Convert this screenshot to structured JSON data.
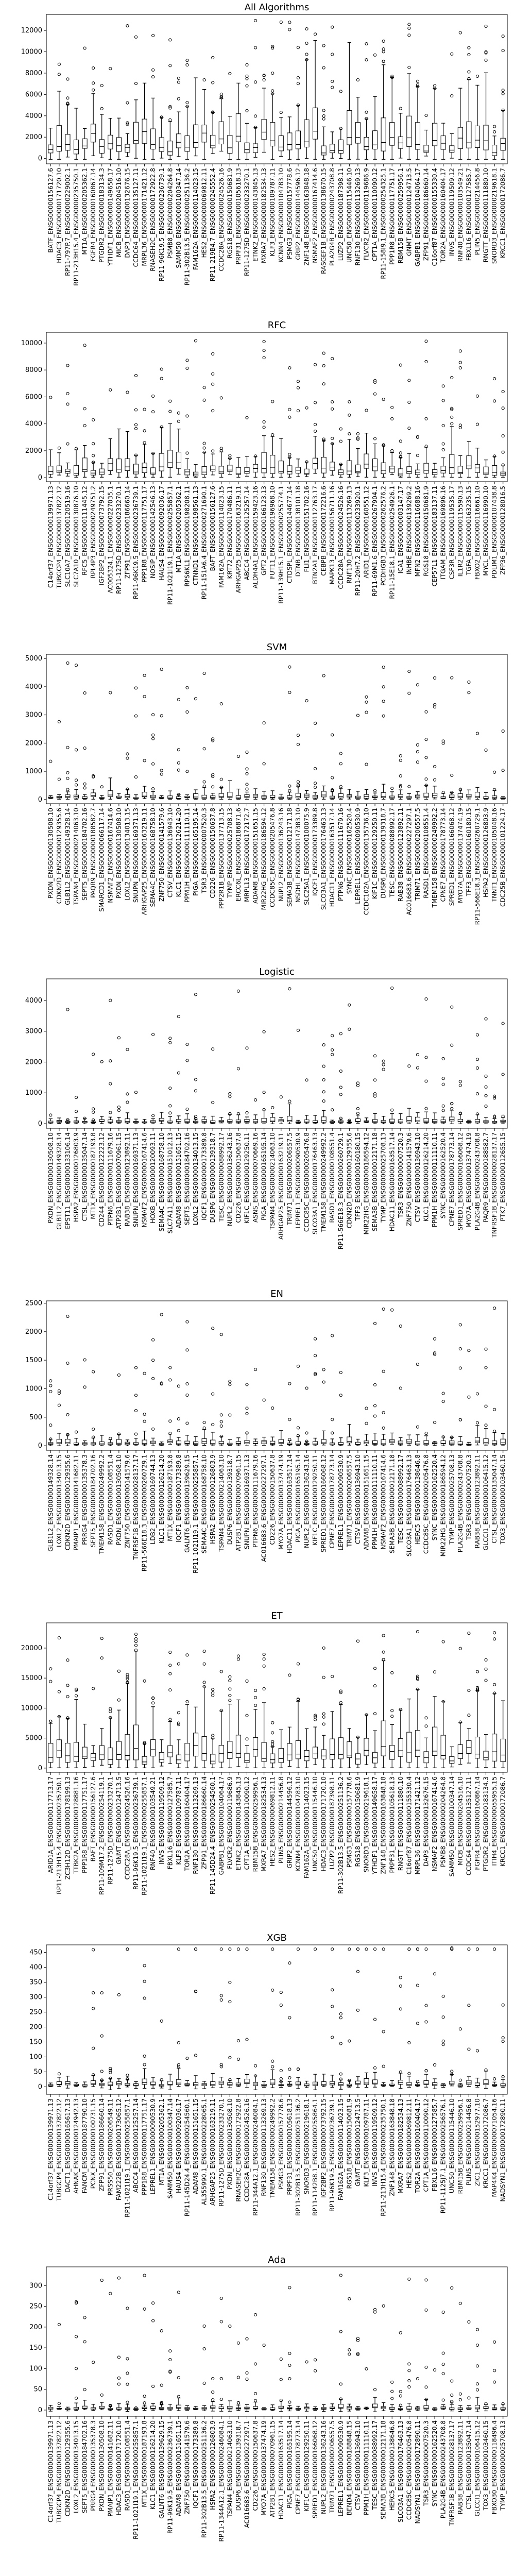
{
  "figure": {
    "chart_type": "box",
    "colors": {
      "box_edge": "#000000",
      "box_fill": "#ffffff",
      "whisker": "#000000",
      "median": "#000000",
      "outlier": "#000000"
    }
  },
  "chart_data": [
    {
      "type": "box",
      "title": "All Algorithms",
      "ylim": [
        -500,
        13500
      ],
      "yticks": [
        0,
        2000,
        4000,
        6000,
        8000,
        10000,
        12000
      ],
      "categories": [
        "BATF_ENSG00000156127.6",
        "HDAC3_ENSG00000171720.10",
        "RP11-797P.7_ENSG00000229002.1",
        "RP11-213H15.4_ENSG00000235750.1",
        "MT1A_ENSG00000205362.1",
        "FGFR4_ENSG00000160867.14",
        "PTGDR2_ENSG00000183134.3",
        "YTHDF1_ENSG00000149658.17",
        "MICB_ENSG00000204516.10",
        "DAP3_ENSG00000132676.15",
        "CCDC64_ENSG00000135127.11",
        "MRPL36_ENSG00000171421.12",
        "RNASEH2C_ENSG00000172922.8",
        "RP11-96K19.5_ENSG00000236739.1",
        "PSMB8_ENSG00000204264.8",
        "SAMM50_ENSG00000100347.14",
        "RP11-302B13.5_ENSG00000251136.2",
        "FAM162A_ENSG00000114023.15",
        "HES2_ENSG00000069812.11",
        "RP11-219B4.7_ENSG00000245552.4",
        "CCDC28A_ENSG00000024526.16",
        "RGS18_ENSG00000150681.9",
        "PRPF31_ENSG00000105618.13",
        "RP11-1275D_ENSG00000233270.1",
        "ETNK2_ENSG00000143845.13",
        "MXRA7_ENSG00000182534.13",
        "KLF3_ENSG00000109787.11",
        "KCNN4_ENSG00000104783.10",
        "PSMG3_ENSG00000157778.6",
        "GRIP2_ENSG00000144596.12",
        "ZNF148_ENSG00000163848.18",
        "NSMAF2_ENSG00000167414.6",
        "RASGEF1B_ENSG00000138670.15",
        "PLA2G4B_ENSG00000243708.8",
        "LUZP2_ENSG00000187398.11",
        "UNC50_ENSG00000115446.10",
        "RNF130_ENSG00000113269.13",
        "FLVCR2_ENSG00000119686.9",
        "CPT1A_ENSG00000110090.12",
        "RP11-158I9.1_ENSG00000254325.1",
        "PPP1R8_ENSG00000117751.17",
        "RBM15B_ENSG00000259956.1",
        "GNMT_ENSG00000124713.5",
        "GABPB1_ENSG00000104064.17",
        "ZFP91_ENSG00000186660.14",
        "C16orf87_ENSG00000155330.4",
        "TOR2A_ENSG00000160404.17",
        "INVS_ENSG00000119509.12",
        "RNF40_ENSG00000103549.21",
        "FBXL16_ENSG00000127585.7",
        "PLIN5_ENSG00000214456.8",
        "RNGTT_ENSG00000111880.10",
        "SNORD3_ENSG00000219618.1",
        "KRCC1_ENSG00000172086.7"
      ],
      "n": 54,
      "scale": 4.0,
      "seed": 11,
      "outlier_max": 13000
    },
    {
      "type": "box",
      "title": "RFC",
      "ylim": [
        -300,
        10800
      ],
      "yticks": [
        0,
        2000,
        4000,
        6000,
        8000,
        10000
      ],
      "categories": [
        "C14orf37_ENSG00000139971.13",
        "TUBGCP4_ENSG00000137822.12",
        "SLC10A7_ENSG00000120519.16",
        "SLC7A10_ENSG00000130876.10",
        "RFC5_ENSG00000111445.12",
        "RPL4P3_ENSG00000249751.2",
        "IGF2BP2_ENSG00000073792.15",
        "AC005324.1_ENSG00000227035.1",
        "RP11-1275D_ENSG00000233270.1",
        "ZFP91_ENSG00000186660.14",
        "RP11-96K19.5_ENSG00000236739.1",
        "PPP1R8_ENSG00000117751.17",
        "NOSIP_ENSG00000142546.13",
        "HAUS4_ENSG00000092036.17",
        "RP11-1021I19.1_ENSG00000255857.1",
        "MT1A_ENSG00000205362.1",
        "RPS6KL1_ENSG00000198208.11",
        "CTNND1_ENSG00000198561.13",
        "RP11-151A6.4_ENSG00000271690.1",
        "BAFT_ENSG00000156127.6",
        "FAM162A_ENSG00000114023.15",
        "KRT72_ENSG00000170486.11",
        "ARHGAP25_ENSG00000163219.11",
        "ABCC4_ENSG00000125257.14",
        "ALDH4A1_ENSG00000159423.16",
        "GPT2_ENSG00000166123.13",
        "FUT11_ENSG00000196968.10",
        "RP11-139H15.1_ENSG00000255774.1",
        "CTDSPL_ENSG00000144677.14",
        "DTNB_ENSG00000138101.18",
        "FLI1_ENSG00000151702.16",
        "BTN2A1_ENSG00000112763.17",
        "CEBPB_ENSG00000172216.6",
        "MAPK13_ENSG00000156711.16",
        "CCDC28A_ENSG00000024526.16",
        "RNF130_ENSG00000113269.13",
        "RP11-20H7.2_ENSG00000233920.1",
        "ARID1_ENSG00000160551.12",
        "RP11-69M1.6_ENSG00000267904.1",
        "PCDHGB3_ENSG00000262576.2",
        "RP11-15E18.1_ENSG00000254926.1",
        "ICA1_ENSG00000003147.17",
        "INHBE_ENSG00000139269.2",
        "MFN2_ENSG00000116688.16",
        "RGS18_ENSG00000150681.9",
        "CEP57L1_ENSG00000183137.11",
        "ITGAM_ENSG00000169896.16",
        "CSF3R_ENSG00000119535.17",
        "IL1R2_ENSG00000115590.13",
        "TGFA_ENSG00000163235.15",
        "FBXO2_ENSG00000116661.10",
        "MYCL_ENSG00000116990.10",
        "PDLIM1_ENSG00000107438.8",
        "ZFP36_ENSG00000128016.5"
      ],
      "n": 54,
      "scale": 1.8,
      "seed": 23,
      "outlier_max": 10300
    },
    {
      "type": "box",
      "title": "SVM",
      "ylim": [
        -150,
        5150
      ],
      "yticks": [
        0,
        1000,
        2000,
        3000,
        4000,
        5000
      ],
      "categories": [
        "PXDN_ENSG00000130508.10",
        "CDKN2D_ENSG00000129355.6",
        "GLB1L2_ENSG00000149328.14",
        "TSPAN4_ENSG00000214063.10",
        "SEPT5_ENSG00000184702.16",
        "PAQR9_ENSG00000188582.7",
        "SMARCD1_ENSG00000066117.14",
        "NSMAF2_ENSG00000167414.6",
        "PXDN_ENSG00000130508.10",
        "LOXL2_ENSG00000134013.15",
        "SNUPN_ENSG00000169371.13",
        "ARHGAP25_ENSG00000163219.11",
        "SEMA4C_ENSG00000168758.10",
        "ZNF750_ENSG00000141579.6",
        "CTSV_ENSG00000136943.10",
        "KLC1_ENSG00000126214.20",
        "PPM1H_ENSG00000111110.11",
        "PIGA_ENSG00000165195.14",
        "TSR3_ENSG00000007520.3",
        "CD226_ENSG00000150637.8",
        "PPP2R1B_ENSG00000137713.15",
        "TYMP_ENSG00000025708.13",
        "ERCC6L_ENSG00000186871.6",
        "MRPL13_ENSG00000172172.7",
        "ADAM8_ENSG00000151651.15",
        "MIR22HG_ENSG00000186594.12",
        "CCDC85C_ENSG00000205476.8",
        "NUPL2_ENSG00000136243.16",
        "SEMA3B_ENSG00000012171.18",
        "NSDHL_ENSG00000147383.10",
        "SLC25A1_ENSG00000100075.9",
        "IQCF1_ENSG00000173389.8",
        "SLCO3A1_ENSG00000176463.13",
        "HDAC11_ENSG00000163517.14",
        "PTPN6_ENSG00000111679.16",
        "SYNC_ENSG00000162520.4",
        "LEPREL1_ENSG00000090530.9",
        "CCDC102A_ENSG00000135736.10",
        "KIF1C_ENSG00000129250.11",
        "DUSP6_ENSG00000139318.7",
        "TESC_ENSG00000088992.17",
        "RAB38_ENSG00000123892.11",
        "AC016683.6_ENSG00000227297.1",
        "TRIM71_ENSG00000206557.5",
        "RASD1_ENSG00000108551.4",
        "TMEM158_ENSG00000249992.2",
        "CPNE7_ENSG00000178773.14",
        "SPRED1_ENSG00000166068.12",
        "MYO7A_ENSG00000137474.19",
        "TFF3_ENSG00000160180.15",
        "RP11-566E18.3_ENSG00000260729.1",
        "HSPA2_ENSG00000126803.9",
        "TNNT1_ENSG00000105048.16",
        "CDC25B_ENSG00000101224.17"
      ],
      "n": 54,
      "scale": 0.25,
      "seed": 37,
      "outlier_max": 4900
    },
    {
      "type": "box",
      "title": "Logistic",
      "ylim": [
        -150,
        4700
      ],
      "yticks": [
        0,
        1000,
        2000,
        3000,
        4000
      ],
      "categories": [
        "PXDN_ENSG00000130508.10",
        "GLB1L2_ENSG00000149328.14",
        "EPST11_ENSG00000133106.14",
        "HSPA2_ENSG00000126803.9",
        "CTSL_ENSG00000135047.14",
        "MT1X_ENSG00000187193.8",
        "CD244_ENSG00000122223.12",
        "PTPN6_ENSG00000111679.16",
        "ATP2B1_ENSG00000070961.15",
        "RAB38_ENSG00000123892.11",
        "SNUPN_ENSG00000169371.13",
        "NSMAF2_ENSG00000167414.6",
        "HOXB_ENSG00000120093.11",
        "SEMA4C_ENSG00000168758.10",
        "SLC7A11_ENSG00000151012.13",
        "ADAM8_ENSG00000151651.15",
        "SEPT5_ENSG00000184702.16",
        "LOXL2_ENSG00000134013.15",
        "IQCF1_ENSG00000173389.8",
        "DUSP6_ENSG00000139318.7",
        "TESC_ENSG00000088992.17",
        "NUPL2_ENSG00000136243.16",
        "CD226_ENSG00000150637.8",
        "KIF1C_ENSG00000129250.11",
        "ASNS_ENSG00000070669.16",
        "PIGA_ENSG00000165195.14",
        "TSPAN4_ENSG00000214063.10",
        "ARHGAP25_ENSG00000163219.11",
        "TRIM71_ENSG00000206557.5",
        "LEPREL1_ENSG00000090530.9",
        "CCDC85C_ENSG00000205476.8",
        "SLCO3A1_ENSG00000176463.13",
        "TMEM158_ENSG00000249992.2",
        "RASD1_ENSG00000108551.4",
        "RP11-566E18.3_ENSG00000260729.1",
        "CDKN2D_ENSG00000129355.6",
        "TFF3_ENSG00000160180.15",
        "MIR22HG_ENSG00000186594.12",
        "SEMA3B_ENSG00000012171.18",
        "TYMP_ENSG00000025708.13",
        "HDAC11_ENSG00000163517.14",
        "TSR3_ENSG00000007520.3",
        "ZNF750_ENSG00000141579.6",
        "CTSV_ENSG00000136943.10",
        "KLC1_ENSG00000126214.20",
        "PPM1H_ENSG00000111110.11",
        "SYNC_ENSG00000162520.4",
        "CPNE7_ENSG00000178773.14",
        "SPRED1_ENSG00000166068.12",
        "MYO7A_ENSG00000137474.19",
        "PLA2G4B_ENSG00000243708.8",
        "PAQR9_ENSG00000188582.7",
        "TNFRSF1B_ENSG00000028137.17",
        "PTK7_ENSG00000112655.15"
      ],
      "n": 54,
      "scale": 0.2,
      "seed": 53,
      "outlier_max": 4400
    },
    {
      "type": "box",
      "title": "EN",
      "ylim": [
        -80,
        2540
      ],
      "yticks": [
        0,
        500,
        1000,
        1500,
        2000,
        2500
      ],
      "categories": [
        "GLB1L2_ENSG00000149328.14",
        "LOXL2_ENSG00000134013.15",
        "CDKN2D_ENSG00000129355.6",
        "PMAIP1_ENSG00000141682.11",
        "PRRG4_ENSG00000135378.3",
        "SEPT5_ENSG00000184702.16",
        "TMEM158_ENSG00000249992.2",
        "RASD1_ENSG00000108551.4",
        "PXDN_ENSG00000130508.10",
        "ZNF750_ENSG00000141579.6",
        "TNFRSF1B_ENSG00000028137.17",
        "RP11-566E18.3_ENSG00000260729.1",
        "LDB2_ENSG00000169744.13",
        "KLC1_ENSG00000126214.20",
        "MT1X_ENSG00000187193.8",
        "IQCF1_ENSG00000173389.8",
        "GALNT6_ENSG00000139629.15",
        "RP11-1021I19.1_ENSG00000255857.1",
        "SEMA4C_ENSG00000168758.10",
        "HSPA2_ENSG00000126803.9",
        "TSPAN4_ENSG00000214063.10",
        "DUSP6_ENSG00000139318.7",
        "ATP2B1_ENSG00000070961.15",
        "SNUPN_ENSG00000169371.13",
        "PTPN6_ENSG00000111679.16",
        "AC016683.6_ENSG00000227297.1",
        "CD226_ENSG00000150637.8",
        "MYO7A_ENSG00000137474.19",
        "HDAC11_ENSG00000163517.14",
        "PIGA_ENSG00000165195.14",
        "NUPL2_ENSG00000136243.16",
        "KIF1C_ENSG00000129250.11",
        "SPRED1_ENSG00000166068.12",
        "CPNE7_ENSG00000178773.14",
        "LEPREL1_ENSG00000090530.9",
        "TRIM71_ENSG00000206557.5",
        "CTSV_ENSG00000136943.10",
        "ADAM8_ENSG00000151651.15",
        "PPM1H_ENSG00000111110.11",
        "NSMAF2_ENSG00000167414.6",
        "SEMA3B_ENSG00000012171.18",
        "TESC_ENSG00000088992.17",
        "SLCO3A1_ENSG00000176463.13",
        "HERC5_ENSG00000138646.8",
        "CCDC85C_ENSG00000205476.8",
        "SYNC_ENSG00000162520.4",
        "MIR22HG_ENSG00000186594.12",
        "TYMP_ENSG00000025708.13",
        "PLA2G4B_ENSG00000243708.8",
        "TSR3_ENSG00000007520.3",
        "RAB38_ENSG00000123892.11",
        "GLCCI1_ENSG00000106415.12",
        "CTSL_ENSG00000135047.14",
        "TOX3_ENSG00000103460.15"
      ],
      "n": 54,
      "scale": 0.12,
      "seed": 71,
      "outlier_max": 2450
    },
    {
      "type": "box",
      "title": "ET",
      "ylim": [
        -700,
        24200
      ],
      "yticks": [
        0,
        5000,
        10000,
        15000,
        20000
      ],
      "categories": [
        "ARID1A_ENSG00000117713.17",
        "RP11-213H15.4_ENSG00000235750.1",
        "ZC3H12D_ENSG00000178199.13",
        "TTBK2A_ENSG00000128881.16",
        "PPP1R8_ENSG00000117751.17",
        "BAFT_ENSG00000156127.6",
        "RP11-109M17.2_ENSG00000254119.1",
        "RP11-1275D_ENSG00000233270.1",
        "GNMT_ENSG00000124713.5",
        "CCDC28A_ENSG00000024526.16",
        "RP11-96K19.5_ENSG00000236739.1",
        "RP11-1021I19.1_ENSG00000255857.1",
        "RNF40_ENSG00000103549.21",
        "INVS_ENSG00000119509.12",
        "FBXL16_ENSG00000127585.7",
        "KLF3_ENSG00000109787.11",
        "TOR2A_ENSG00000160404.17",
        "RNF130_ENSG00000113269.13",
        "ZFP91_ENSG00000186660.14",
        "RP11-145D24.4_ENSG00000254560.1",
        "GABPB1_ENSG00000104064.17",
        "FLVCR2_ENSG00000119686.9",
        "ETNK2_ENSG00000143845.13",
        "CPT1A_ENSG00000110090.12",
        "RBM15B_ENSG00000259956.1",
        "MXRA7_ENSG00000182534.13",
        "HES2_ENSG00000069812.11",
        "PLIN5_ENSG00000214456.8",
        "GRIP2_ENSG00000144596.12",
        "KCNN4_ENSG00000104783.10",
        "FAM162A_ENSG00000114023.15",
        "UNC50_ENSG00000115446.10",
        "HDAC3_ENSG00000171720.10",
        "LUZP2_ENSG00000187398.11",
        "RP11-302B13.5_ENSG00000251136.2",
        "PSMG3_ENSG00000157778.6",
        "RGS18_ENSG00000150681.9",
        "SNORD3_ENSG00000219618.1",
        "YTHDF1_ENSG00000149658.17",
        "ZNF148_ENSG00000163848.18",
        "PRPF31_ENSG00000105618.13",
        "RNGTT_ENSG00000111880.10",
        "C16orf87_ENSG00000155330.4",
        "MRPL36_ENSG00000171421.12",
        "DAP3_ENSG00000132676.15",
        "NSMAF2_ENSG00000167414.6",
        "PSMB8_ENSG00000204264.8",
        "SAMM50_ENSG00000100347.14",
        "MICB_ENSG00000204516.10",
        "CCDC64_ENSG00000135127.11",
        "FGFR4_ENSG00000160867.14",
        "PTGDR2_ENSG00000183134.3",
        "ITIH4_ENSG00000055955.15",
        "KRCC1_ENSG00000172086.7"
      ],
      "n": 54,
      "scale": 6.5,
      "seed": 89,
      "outlier_max": 23000
    },
    {
      "type": "box",
      "title": "XGB",
      "ylim": [
        -25,
        475
      ],
      "yticks": [
        0,
        50,
        100,
        150,
        200,
        250,
        300,
        350,
        400,
        450
      ],
      "categories": [
        "C14orf37_ENSG00000139971.13",
        "TUBGCP4_ENSG00000137822.12",
        "DACT1_ENSG00000165617.13",
        "AHNAK_ENSG00000124942.13",
        "FANCM_ENSG00000187790.10",
        "PCNX_ENSG00000100731.15",
        "ZFP91_ENSG00000186660.14",
        "PRSS50_ENSG00000206549.11",
        "FAM222B_ENSG00000173065.12",
        "RP11-1021I19.1_ENSG00000255857.1",
        "ABCC4_ENSG00000125257.14",
        "PPP1R8_ENSG00000117751.17",
        "LEPREL1_ENSG00000090530.9",
        "MT1A_ENSG00000205362.1",
        "SAMM50_ENSG00000100347.14",
        "HAUS4_ENSG00000092036.17",
        "RP11-145D24.4_ENSG00000254560.1",
        "ADAM8_ENSG00000151651.15",
        "AL355990.1_ENSG00000228065.1",
        "ARHGAP25_ENSG00000163219.11",
        "RP11-1275D_ENSG00000233270.1",
        "PXDN_ENSG00000130508.10",
        "RNASEH2C_ENSG00000172922.8",
        "CCDC28A_ENSG00000024526.16",
        "RP11-344A12.1_ENSG00000246084.1",
        "RNF130_ENSG00000113269.13",
        "TMEM158_ENSG00000249992.2",
        "PSMG3_ENSG00000157778.6",
        "PRPF31_ENSG00000105618.13",
        "RP11-302B13.5_ENSG00000251136.2",
        "SNORD3_ENSG00000219618.1",
        "RP11-1142B8.1_ENSG00000255864.1",
        "IGF2BP2_ENSG00000073792.15",
        "RP11-96K19.5_ENSG00000236739.1",
        "FAM162A_ENSG00000114023.15",
        "RGS18_ENSG00000150681.9",
        "GNMT_ENSG00000124713.5",
        "KLF3_ENSG00000109787.11",
        "INVS_ENSG00000119509.12",
        "RP11-213H15.4_ENSG00000235750.1",
        "ZNF148_ENSG00000163848.18",
        "MXRA7_ENSG00000182534.13",
        "HES2_ENSG00000069812.11",
        "TOR2A_ENSG00000160404.17",
        "CPT1A_ENSG00000110090.12",
        "FBXL16_ENSG00000127585.7",
        "RP11-1125J7.1_ENSG00000256576.1",
        "UNC50_ENSG00000115446.10",
        "RBM15B_ENSG00000259956.1",
        "PLIN5_ENSG00000214456.8",
        "ZIC1_ENSG00000152977.10",
        "KRCC1_ENSG00000172086.7",
        "MAP4K4_ENSG00000071054.16",
        "NADSYN1_ENSG00000172890.11"
      ],
      "n": 54,
      "scale": 0.022,
      "seed": 97,
      "outlier_max": 720
    },
    {
      "type": "box",
      "title": "Ada",
      "ylim": [
        -15,
        345
      ],
      "yticks": [
        0,
        50,
        100,
        150,
        200,
        250,
        300
      ],
      "categories": [
        "C14orf37_ENSG00000139971.13",
        "TUBGCP4_ENSG00000137822.12",
        "CDKN2D_ENSG00000129355.6",
        "LOXL2_ENSG00000134013.15",
        "SEPT5_ENSG00000184702.16",
        "PRRG4_ENSG00000135378.3",
        "PXDN_ENSG00000130508.10",
        "PMAIP1_ENSG00000141682.11",
        "HDAC3_ENSG00000171720.10",
        "RASD1_ENSG00000108551.4",
        "RP11-1021I19.1_ENSG00000255857.1",
        "MT1X_ENSG00000187193.8",
        "KLC1_ENSG00000126214.20",
        "GALNT6_ENSG00000139629.15",
        "RP11-96K19.5_ENSG00000236739.1",
        "ADAM8_ENSG00000151651.15",
        "ZNF750_ENSG00000141579.6",
        "IQCF1_ENSG00000173389.8",
        "RP11-302B13.5_ENSG00000251136.2",
        "HSPA2_ENSG00000126803.9",
        "RP11-1344A12.1_ENSG00000246084.1",
        "TSPAN4_ENSG00000214063.10",
        "DUSP6_ENSG00000139318.7",
        "AC016683.6_ENSG00000227297.1",
        "CD226_ENSG00000150637.8",
        "MYO7A_ENSG00000137474.19",
        "ATP2B1_ENSG00000070961.15",
        "HDAC11_ENSG00000163517.14",
        "PIGA_ENSG00000165195.14",
        "CPNE7_ENSG00000178773.14",
        "KIF1C_ENSG00000129250.11",
        "SPRED1_ENSG00000166068.12",
        "NUPL2_ENSG00000136243.16",
        "TRIM71_ENSG00000206557.5",
        "LEPREL1_ENSG00000090530.9",
        "BEND4_ENSG00000188848.15",
        "CTSV_ENSG00000136943.10",
        "PPM1H_ENSG00000111110.11",
        "TESC_ENSG00000088992.17",
        "SEMA3B_ENSG00000012171.18",
        "HERC5_ENSG00000138646.8",
        "SLCO3A1_ENSG00000176463.13",
        "CCDC85C_ENSG00000205476.8",
        "NADSYN1_ENSG00000172890.11",
        "TSR3_ENSG00000007520.3",
        "SYNC_ENSG00000162520.4",
        "PLA2G4B_ENSG00000243708.8",
        "TNFRSF1B_ENSG00000028137.17",
        "RAB38_ENSG00000123892.11",
        "CTSL_ENSG00000135047.14",
        "GLCCI1_ENSG00000106415.12",
        "TOX3_ENSG00000103460.15",
        "FBXO30_ENSG00000118496.4",
        "TYMP_ENSG00000025708.13"
      ],
      "n": 54,
      "scale": 0.012,
      "seed": 113,
      "outlier_max": 325
    }
  ]
}
